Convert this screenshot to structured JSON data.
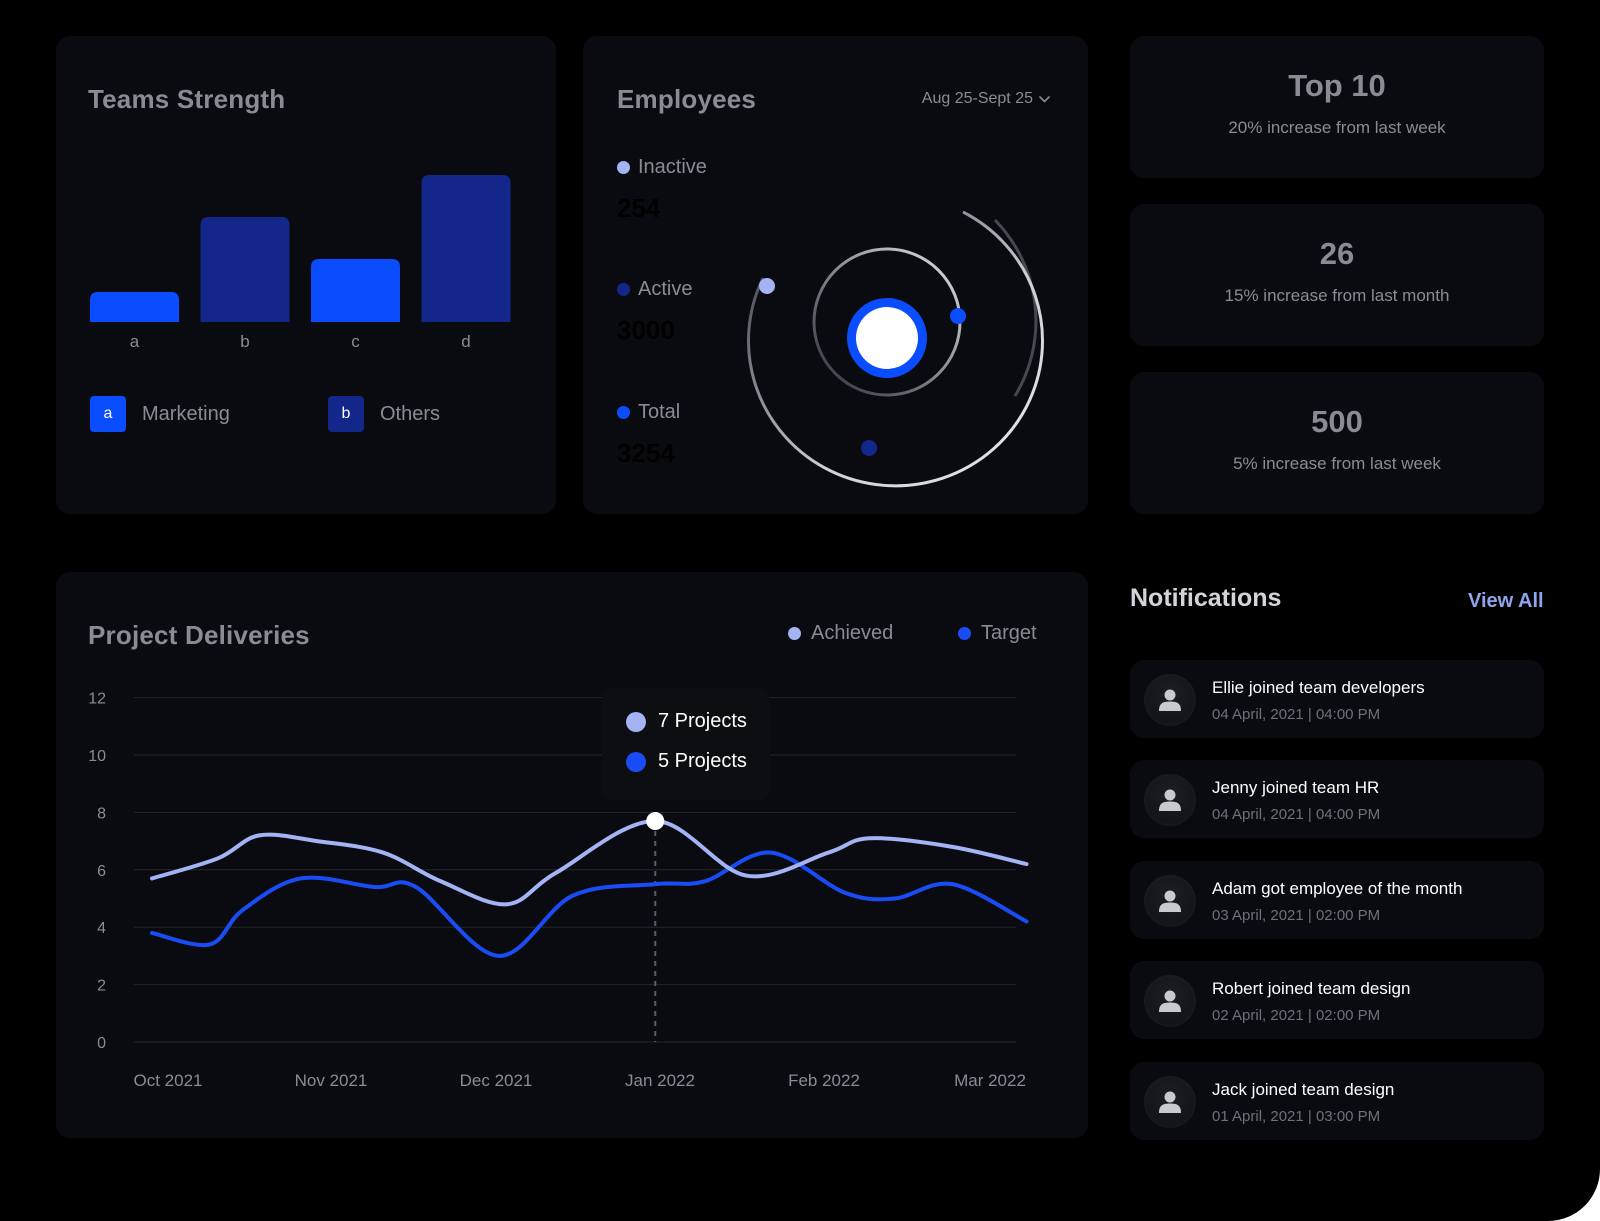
{
  "colors": {
    "page_bg": "#000000",
    "card_bg": "#0a0b10",
    "muted_text": "#8b8c93",
    "achieved": "#a3b3f4",
    "target": "#1a4cf5",
    "bright_blue": "#0a4dff",
    "navy": "#13268a",
    "accent_link": "#8fa4ea"
  },
  "teams": {
    "title": "Teams Strength",
    "legend": [
      {
        "key": "a",
        "label": "Marketing"
      },
      {
        "key": "b",
        "label": "Others"
      }
    ]
  },
  "employees": {
    "title": "Employees",
    "date_range": "Aug 25-Sept 25",
    "dropdown_icon": "chevron-down-icon",
    "stats": [
      {
        "label": "Inactive",
        "value": "254"
      },
      {
        "label": "Active",
        "value": "3000"
      },
      {
        "label": "Total",
        "value": "3254"
      }
    ]
  },
  "kpis": [
    {
      "value": "Top 10",
      "caption": "20% increase from last week"
    },
    {
      "value": "26",
      "caption": "15% increase from last month"
    },
    {
      "value": "500",
      "caption": "5% increase from last week"
    }
  ],
  "projects": {
    "title": "Project Deliveries",
    "legend": [
      "Achieved",
      "Target"
    ],
    "tooltip": {
      "achieved": "7 Projects",
      "target": "5 Projects"
    }
  },
  "notifications": {
    "title": "Notifications",
    "view_all": "View All",
    "avatar_icon": "user-icon",
    "items": [
      {
        "text": "Ellie joined team developers",
        "time": "04 April, 2021 | 04:00 PM"
      },
      {
        "text": "Jenny joined team HR",
        "time": "04 April, 2021 | 04:00 PM"
      },
      {
        "text": "Adam got employee of the month",
        "time": "03 April, 2021 | 02:00 PM"
      },
      {
        "text": "Robert joined team design",
        "time": "02 April, 2021 | 02:00 PM"
      },
      {
        "text": "Jack joined team design",
        "time": "01 April, 2021 | 03:00 PM"
      }
    ]
  },
  "chart_data": [
    {
      "type": "bar",
      "categories": [
        "a",
        "b",
        "c",
        "d"
      ],
      "values": [
        2,
        7,
        4.2,
        9.8
      ],
      "ylim": [
        0,
        10
      ],
      "colors": [
        "#0a4dff",
        "#13268a",
        "#0a4dff",
        "#13268a"
      ]
    },
    {
      "type": "line",
      "x": [
        "Oct 2021",
        "Nov 2021",
        "Dec 2021",
        "Jan 2022",
        "Feb 2022",
        "Mar 2022"
      ],
      "ylim": [
        0,
        12
      ],
      "yticks": [
        0,
        2,
        4,
        6,
        8,
        10,
        12
      ],
      "grid": true,
      "legend": "top-right",
      "series": [
        {
          "name": "Achieved",
          "color": "#a3b3f4",
          "points": [
            [
              0.0,
              5.7
            ],
            [
              0.4,
              6.4
            ],
            [
              0.65,
              7.2
            ],
            [
              1.0,
              7.0
            ],
            [
              1.4,
              6.6
            ],
            [
              1.75,
              5.6
            ],
            [
              2.15,
              4.8
            ],
            [
              2.45,
              5.9
            ],
            [
              3.05,
              7.7
            ],
            [
              3.6,
              5.8
            ],
            [
              4.1,
              6.6
            ],
            [
              4.35,
              7.1
            ],
            [
              4.85,
              6.8
            ],
            [
              5.3,
              6.2
            ]
          ]
        },
        {
          "name": "Target",
          "color": "#1a4cf5",
          "points": [
            [
              0.0,
              3.8
            ],
            [
              0.35,
              3.4
            ],
            [
              0.55,
              4.6
            ],
            [
              0.9,
              5.7
            ],
            [
              1.35,
              5.4
            ],
            [
              1.6,
              5.4
            ],
            [
              2.1,
              3.0
            ],
            [
              2.55,
              5.1
            ],
            [
              3.05,
              5.5
            ],
            [
              3.35,
              5.6
            ],
            [
              3.75,
              6.6
            ],
            [
              4.2,
              5.2
            ],
            [
              4.5,
              5.0
            ],
            [
              4.85,
              5.5
            ],
            [
              5.3,
              4.2
            ]
          ]
        }
      ],
      "highlight": {
        "x": "Jan 2022",
        "achieved": 7,
        "target": 5
      }
    }
  ]
}
